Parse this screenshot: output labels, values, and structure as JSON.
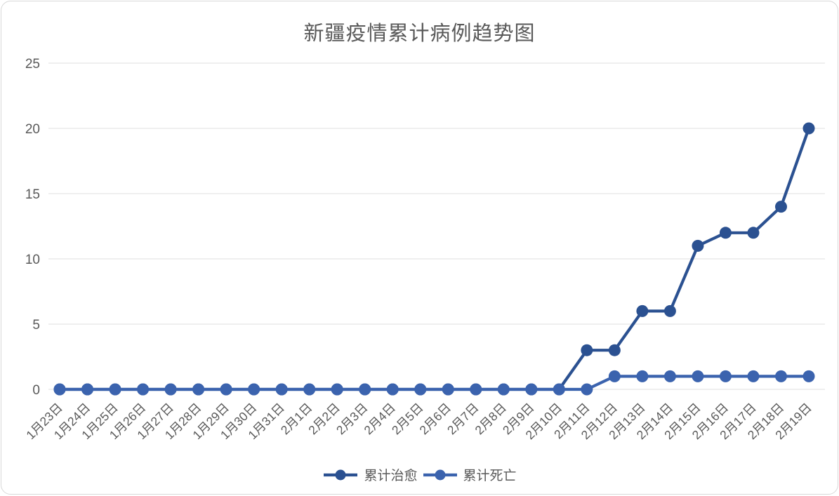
{
  "window": {
    "background": "#ffffff",
    "border_color": "#d8d8d8"
  },
  "chart_data": {
    "type": "line",
    "title": "新疆疫情累计病例趋势图",
    "xlabel": "",
    "ylabel": "",
    "categories": [
      "1月23日",
      "1月24日",
      "1月25日",
      "1月26日",
      "1月27日",
      "1月28日",
      "1月29日",
      "1月30日",
      "1月31日",
      "2月1日",
      "2月2日",
      "2月3日",
      "2月4日",
      "2月5日",
      "2月6日",
      "2月7日",
      "2月8日",
      "2月9日",
      "2月10日",
      "2月11日",
      "2月12日",
      "2月13日",
      "2月14日",
      "2月15日",
      "2月16日",
      "2月17日",
      "2月18日",
      "2月19日"
    ],
    "series": [
      {
        "id": "cumulative-cured",
        "name": "累计治愈",
        "color": "#2B5191",
        "values": [
          0,
          0,
          0,
          0,
          0,
          0,
          0,
          0,
          0,
          0,
          0,
          0,
          0,
          0,
          0,
          0,
          0,
          0,
          0,
          3,
          3,
          6,
          6,
          11,
          12,
          12,
          14,
          20
        ]
      },
      {
        "id": "cumulative-deaths",
        "name": "累计死亡",
        "color": "#3B63AE",
        "values": [
          0,
          0,
          0,
          0,
          0,
          0,
          0,
          0,
          0,
          0,
          0,
          0,
          0,
          0,
          0,
          0,
          0,
          0,
          0,
          0,
          1,
          1,
          1,
          1,
          1,
          1,
          1,
          1
        ]
      }
    ],
    "ylim": [
      0,
      25
    ],
    "yticks": [
      0,
      5,
      10,
      15,
      20,
      25
    ],
    "grid": true,
    "legend_position": "bottom",
    "text_color": "#595959",
    "gridline_color": "#efefef"
  }
}
